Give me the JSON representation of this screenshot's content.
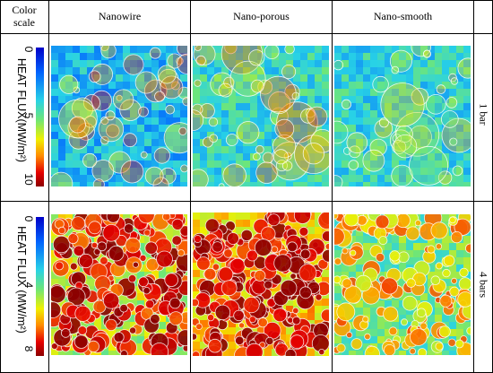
{
  "header": {
    "color_scale": "Color scale",
    "columns": [
      "Nanowire",
      "Nano-porous",
      "Nano-smooth"
    ]
  },
  "rows": [
    {
      "label": "1 bar",
      "scale": {
        "axis_label": "HEAT FLUX(MW/m²)",
        "ticks": [
          "0",
          "5",
          "10"
        ]
      }
    },
    {
      "label": "4 bars",
      "scale": {
        "axis_label": "HEAT FLUX (MW/m²)",
        "ticks": [
          "0",
          "4",
          "8"
        ]
      }
    }
  ],
  "colors": {
    "scale_low": "#0000c8",
    "scale_mid": "#28d2e6",
    "scale_high": "#8c0000",
    "bubble_outline": "#ffffff"
  }
}
